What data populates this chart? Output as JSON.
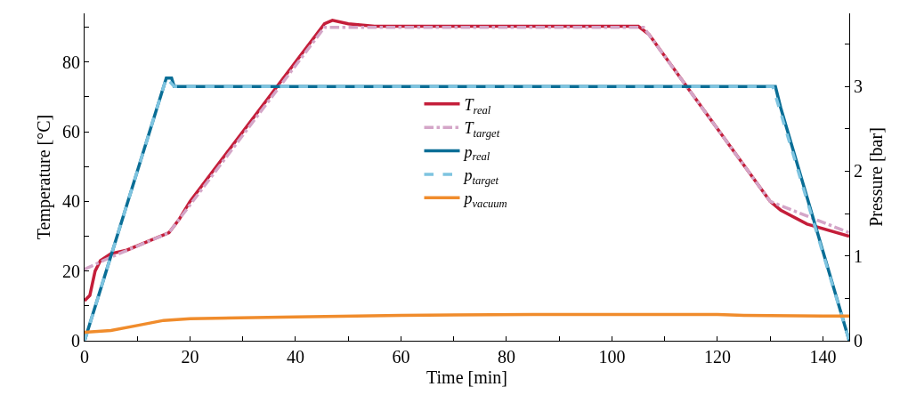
{
  "chart_data": {
    "type": "line",
    "xlabel": "Time [min]",
    "ylabel": "Temperature [°C]",
    "y2label": "Pressure [bar]",
    "xlim": [
      0,
      145
    ],
    "xticks": [
      0,
      {
        "value": 10,
        "label": null
      },
      20,
      {
        "value": 30,
        "label": null
      },
      40,
      {
        "value": 50,
        "label": null
      },
      60,
      {
        "value": 70,
        "label": null
      },
      80,
      {
        "value": 90,
        "label": null
      },
      100,
      {
        "value": 110,
        "label": null
      },
      120,
      {
        "value": 130,
        "label": null
      },
      140
    ],
    "ylim": [
      0,
      94
    ],
    "yticks": [
      0,
      {
        "value": 10,
        "label": null
      },
      20,
      {
        "value": 30,
        "label": null
      },
      40,
      {
        "value": 50,
        "label": null
      },
      60,
      {
        "value": 70,
        "label": null
      },
      80,
      {
        "value": 90,
        "label": null
      }
    ],
    "y2lim": [
      0,
      3.863
    ],
    "y2ticks": [
      0,
      {
        "value": 0.5,
        "label": null
      },
      1,
      {
        "value": 1.5,
        "label": null
      },
      2,
      {
        "value": 2.5,
        "label": null
      },
      3,
      {
        "value": 3.5,
        "label": null
      }
    ],
    "legend": "center",
    "marker": "none",
    "series": [
      {
        "name": "T$_{real}$",
        "color": "#c41e3a",
        "line_style": "solid",
        "x": [
          0,
          1,
          2,
          3,
          5,
          8,
          12,
          16,
          18,
          20,
          45.5,
          47,
          50,
          55,
          105,
          107,
          130,
          132,
          137,
          145
        ],
        "values": [
          11.5,
          13,
          20,
          23,
          25,
          26,
          28.5,
          31,
          35,
          40,
          91,
          92,
          91,
          90.3,
          90.3,
          88,
          40,
          37.5,
          33.5,
          30
        ]
      },
      {
        "name": "T$_{target}$",
        "color": "#d4a6c8",
        "line_style": "dashdot",
        "x": [
          0,
          5,
          16,
          45.5,
          106,
          130,
          145
        ],
        "values": [
          20.5,
          24,
          31,
          90,
          90,
          40,
          31
        ]
      },
      {
        "name": "p$_{real}$",
        "color": "#0a6e96",
        "line_style": "solid",
        "axis": "y2",
        "x": [
          0,
          15.5,
          16.5,
          17,
          131,
          132,
          145
        ],
        "values": [
          0,
          3.1,
          3.1,
          3.0,
          3.0,
          2.75,
          0
        ]
      },
      {
        "name": "p$_{target}$",
        "color": "#7ec4e0",
        "line_style": "dashed",
        "axis": "y2",
        "x": [
          0,
          15.5,
          17,
          130.5,
          145
        ],
        "values": [
          0,
          3.1,
          3.0,
          3.0,
          0
        ]
      },
      {
        "name": "p$_{vacuum}$",
        "color": "#f08c2c",
        "line_style": "solid",
        "axis": "y2",
        "x": [
          0,
          5,
          10,
          15,
          20,
          40,
          60,
          85,
          120,
          125,
          140,
          145
        ],
        "values": [
          0.1,
          0.12,
          0.18,
          0.24,
          0.26,
          0.28,
          0.3,
          0.31,
          0.31,
          0.3,
          0.29,
          0.29
        ]
      }
    ]
  }
}
